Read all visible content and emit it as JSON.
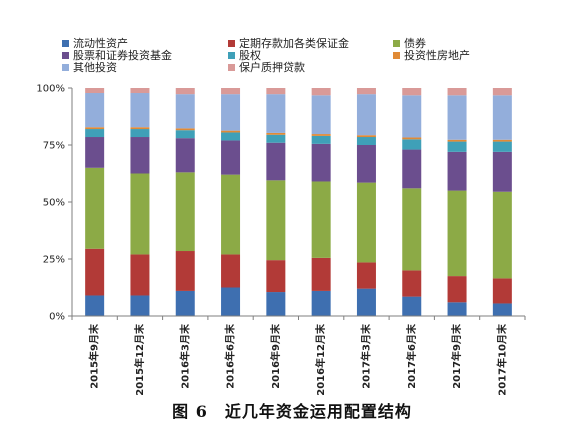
{
  "caption": "图 6　近几年资金运用配置结构",
  "colors": [
    "#3E6FB0",
    "#B23A37",
    "#8CAA46",
    "#6B4E8E",
    "#3FA0B8",
    "#E08A36",
    "#93AEDB",
    "#D99A98"
  ],
  "chart_data": {
    "type": "bar",
    "stacked": true,
    "percent": true,
    "categories": [
      "2015年9月末",
      "2015年12月末",
      "2016年3月末",
      "2016年6月末",
      "2016年9月末",
      "2016年12月末",
      "2017年3月末",
      "2017年6月末",
      "2017年9月末",
      "2017年10月末"
    ],
    "y_ticks": [
      "0%",
      "25%",
      "50%",
      "75%",
      "100%"
    ],
    "ylim": [
      0,
      100
    ],
    "legend_position": "top",
    "series": [
      {
        "name": "流动性资产",
        "values": [
          9,
          9,
          11,
          12.5,
          10.5,
          11,
          12,
          8.5,
          6,
          5.5
        ]
      },
      {
        "name": "定期存款加各类保证金",
        "values": [
          20.5,
          18,
          17.5,
          14.5,
          14,
          14.5,
          11.5,
          11.5,
          11.5,
          11
        ]
      },
      {
        "name": "债券",
        "values": [
          35.5,
          35.5,
          34.5,
          35,
          35,
          33.5,
          35,
          36,
          37.5,
          38
        ]
      },
      {
        "name": "股票和证券投资基金",
        "values": [
          13.5,
          16,
          15,
          15,
          16.5,
          16.5,
          16.5,
          17,
          17,
          17.5
        ]
      },
      {
        "name": "股权",
        "values": [
          3.5,
          3.5,
          3.5,
          3.5,
          3.5,
          3.5,
          3.5,
          4.5,
          4.5,
          4.5
        ]
      },
      {
        "name": "投资性房地产",
        "values": [
          0.8,
          0.8,
          0.8,
          0.8,
          0.8,
          0.8,
          0.8,
          0.8,
          0.8,
          0.8
        ]
      },
      {
        "name": "其他投资",
        "values": [
          15,
          15,
          15,
          16,
          17,
          17,
          18,
          18.5,
          19.5,
          19.5
        ]
      },
      {
        "name": "保户质押贷款",
        "values": [
          2.2,
          2.2,
          2.7,
          2.7,
          2.7,
          3.2,
          2.7,
          3.2,
          3.2,
          3.2
        ]
      }
    ]
  }
}
